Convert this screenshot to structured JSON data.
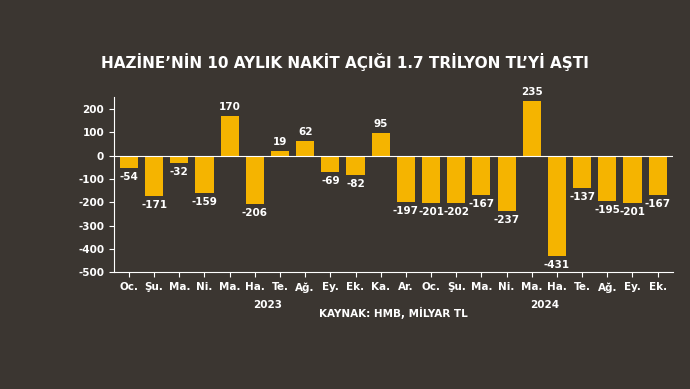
{
  "chart_data": {
    "type": "bar",
    "title": "HAZİNE’NİN 10 AYLIK NAKİT AÇIĞI 1.7 TRİLYON TL’Yİ AŞTI",
    "categories": [
      "Oc.",
      "Şu.",
      "Ma.",
      "Ni.",
      "Ma.",
      "Ha.",
      "Te.",
      "Ağ.",
      "Ey.",
      "Ek.",
      "Ka.",
      "Ar.",
      "Oc.",
      "Şu.",
      "Ma.",
      "Ni.",
      "Ma.",
      "Ha.",
      "Te.",
      "Ağ.",
      "Ey.",
      "Ek."
    ],
    "values": [
      -54,
      -171,
      -32,
      -159,
      170,
      -206,
      19,
      62,
      -69,
      -82,
      95,
      -197,
      -201,
      -202,
      -167,
      -237,
      235,
      -431,
      -137,
      -195,
      -201,
      -167
    ],
    "x_groups": [
      {
        "label": "2023",
        "count": 12
      },
      {
        "label": "2024",
        "count": 10
      }
    ],
    "source": "KAYNAK: HMB, MİLYAR TL",
    "color": "#f5b400",
    "ylim": [
      -500,
      250
    ],
    "yticks": [
      -500,
      -400,
      -300,
      -200,
      -100,
      0,
      100,
      200
    ],
    "data_labels": true,
    "grid": false
  }
}
